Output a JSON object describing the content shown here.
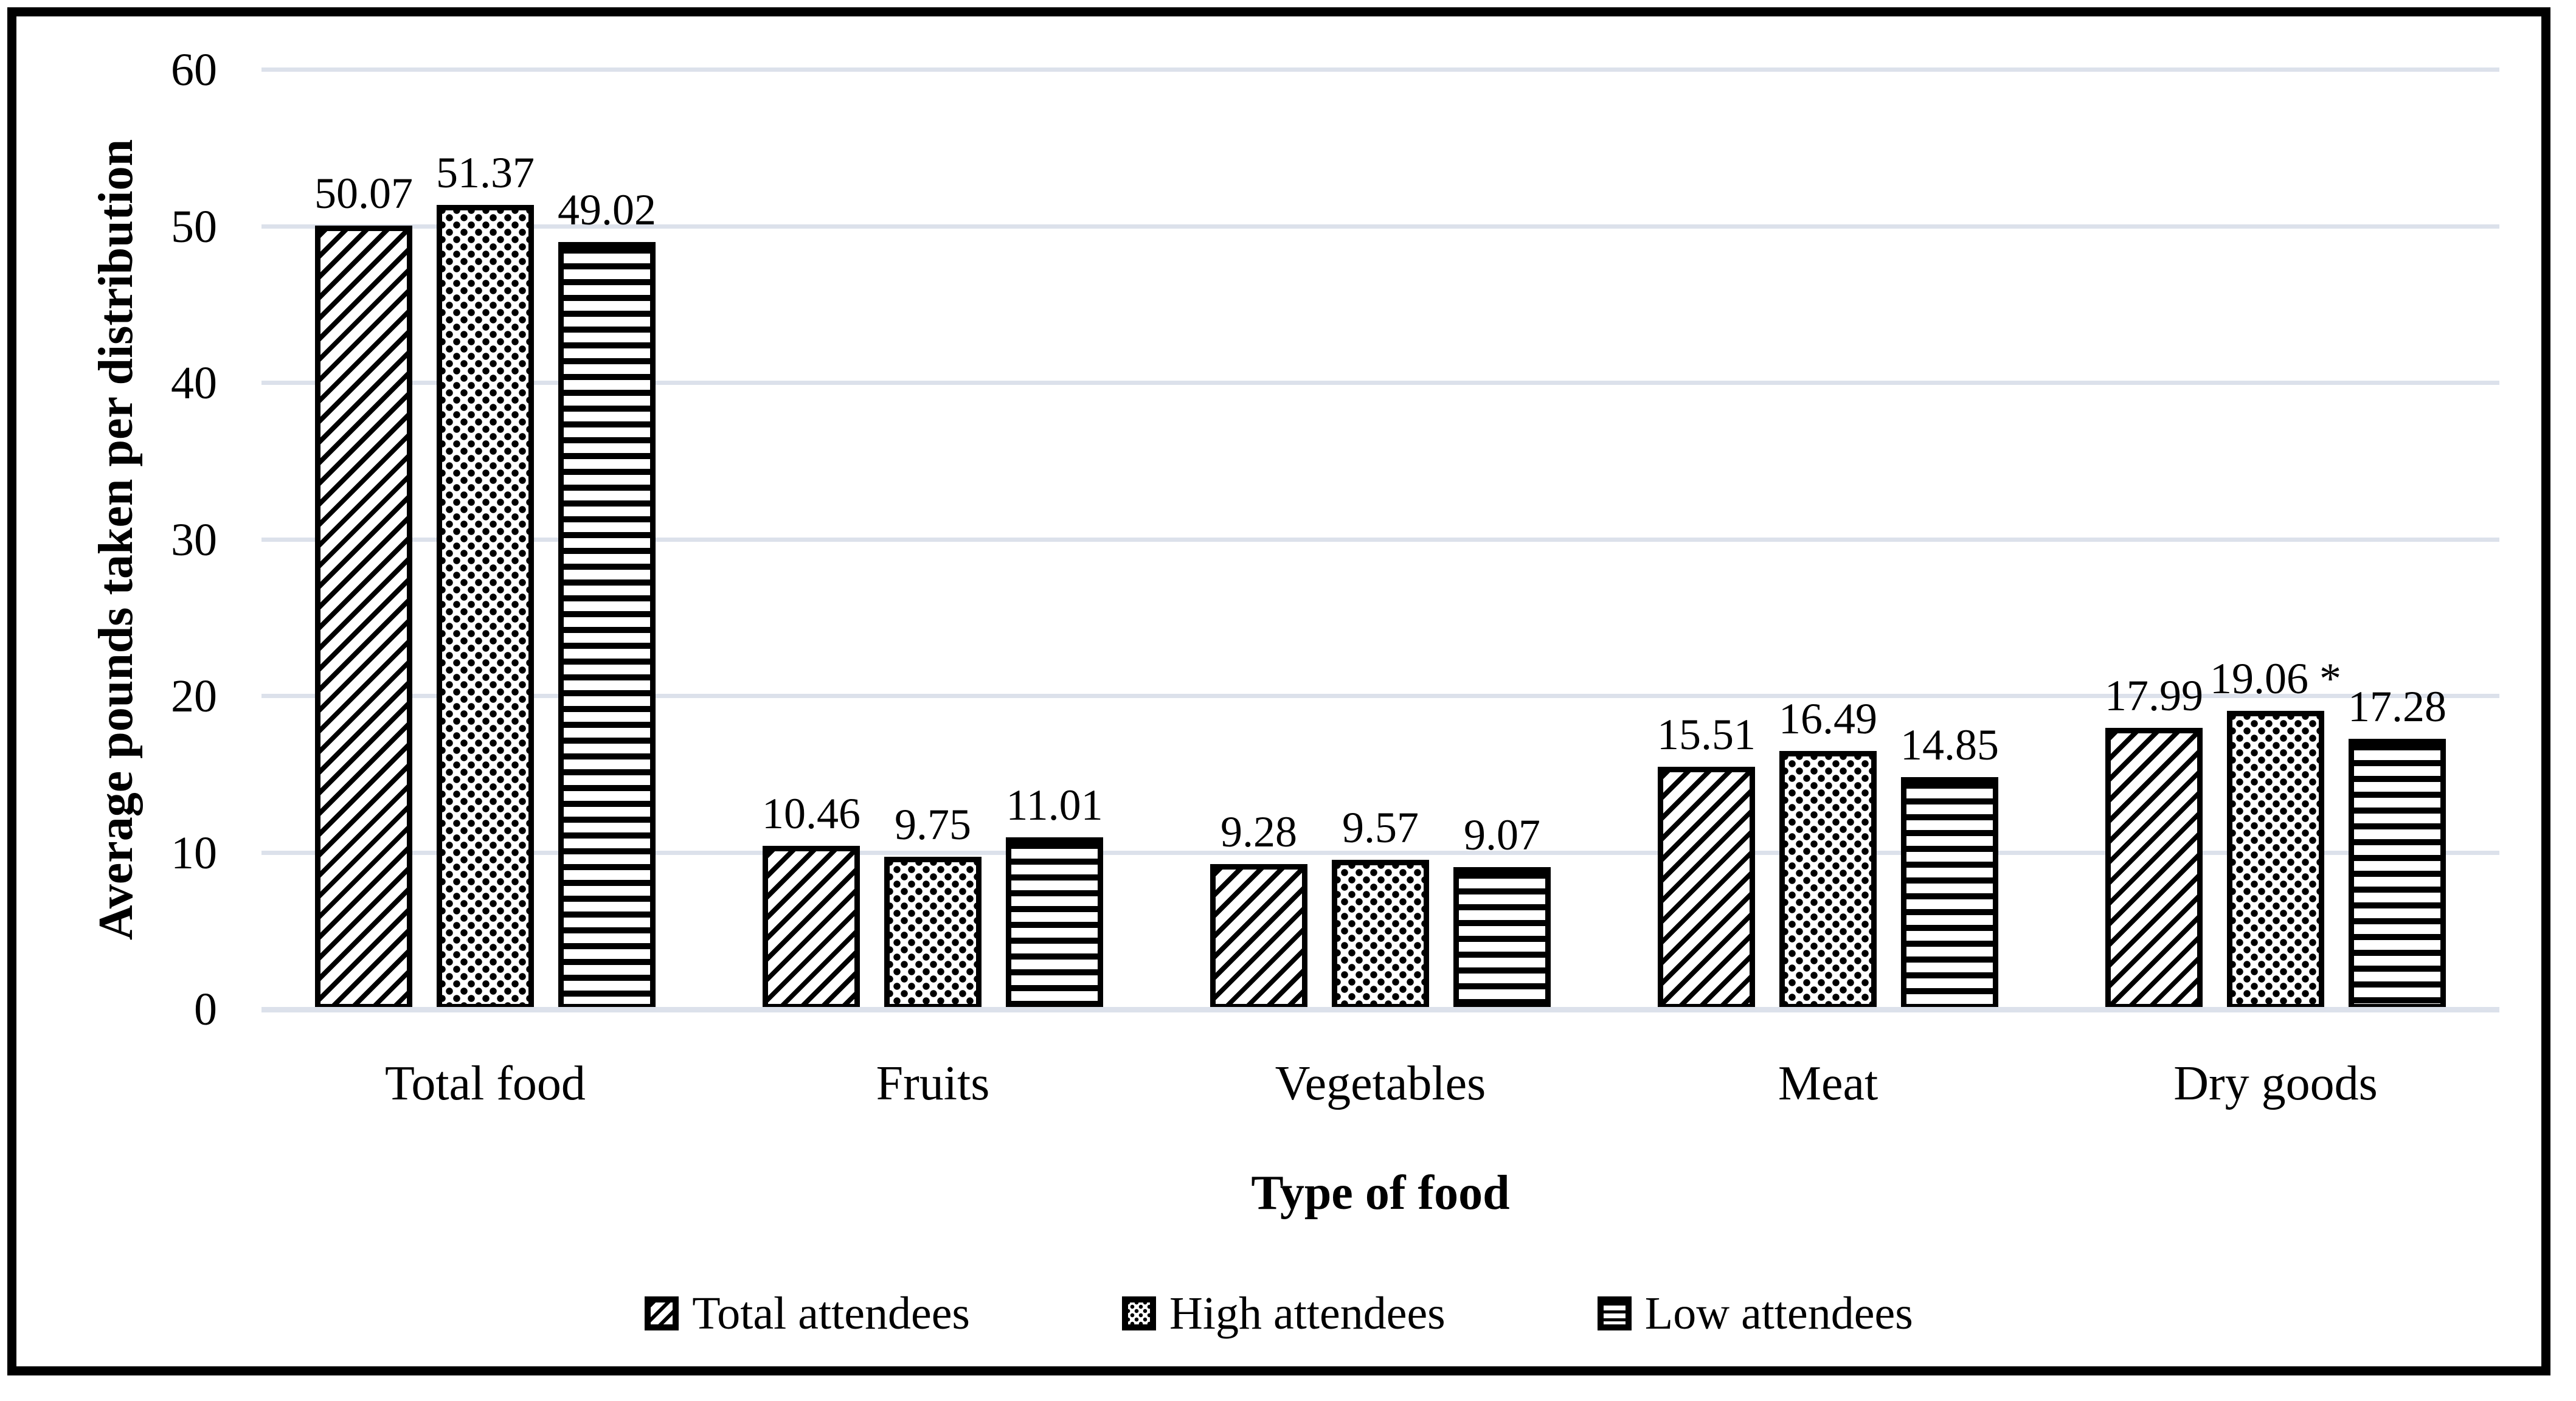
{
  "chart_data": {
    "type": "bar",
    "title": "",
    "xlabel": "Type of food",
    "ylabel": "Average pounds taken per distribution",
    "ylim": [
      0,
      60
    ],
    "yticks": [
      0,
      10,
      20,
      30,
      40,
      50,
      60
    ],
    "grid": true,
    "legend_position": "bottom",
    "categories": [
      "Total food",
      "Fruits",
      "Vegetables",
      "Meat",
      "Dry goods"
    ],
    "series": [
      {
        "name": "Total attendees",
        "pattern": "diagonal-stripes",
        "values": [
          50.07,
          10.46,
          9.28,
          15.51,
          17.99
        ],
        "labels": [
          "50.07",
          "10.46",
          "9.28",
          "15.51",
          "17.99"
        ]
      },
      {
        "name": "High attendees",
        "pattern": "dots",
        "values": [
          51.37,
          9.75,
          9.57,
          16.49,
          19.06
        ],
        "labels": [
          "51.37",
          "9.75",
          "9.57",
          "16.49",
          "19.06 *"
        ]
      },
      {
        "name": "Low attendees",
        "pattern": "horizontal-stripes",
        "values": [
          49.02,
          11.01,
          9.07,
          14.85,
          17.28
        ],
        "labels": [
          "49.02",
          "11.01",
          "9.07",
          "14.85",
          "17.28"
        ]
      }
    ],
    "annotations": {
      "significance_marker": "*"
    },
    "colors": {
      "bar_fill": "#ffffff",
      "bar_stroke": "#000000",
      "gridline": "#dce1eb",
      "axis_line": "#dce1eb",
      "text": "#000000",
      "figure_border": "#000000",
      "background": "#ffffff"
    }
  }
}
